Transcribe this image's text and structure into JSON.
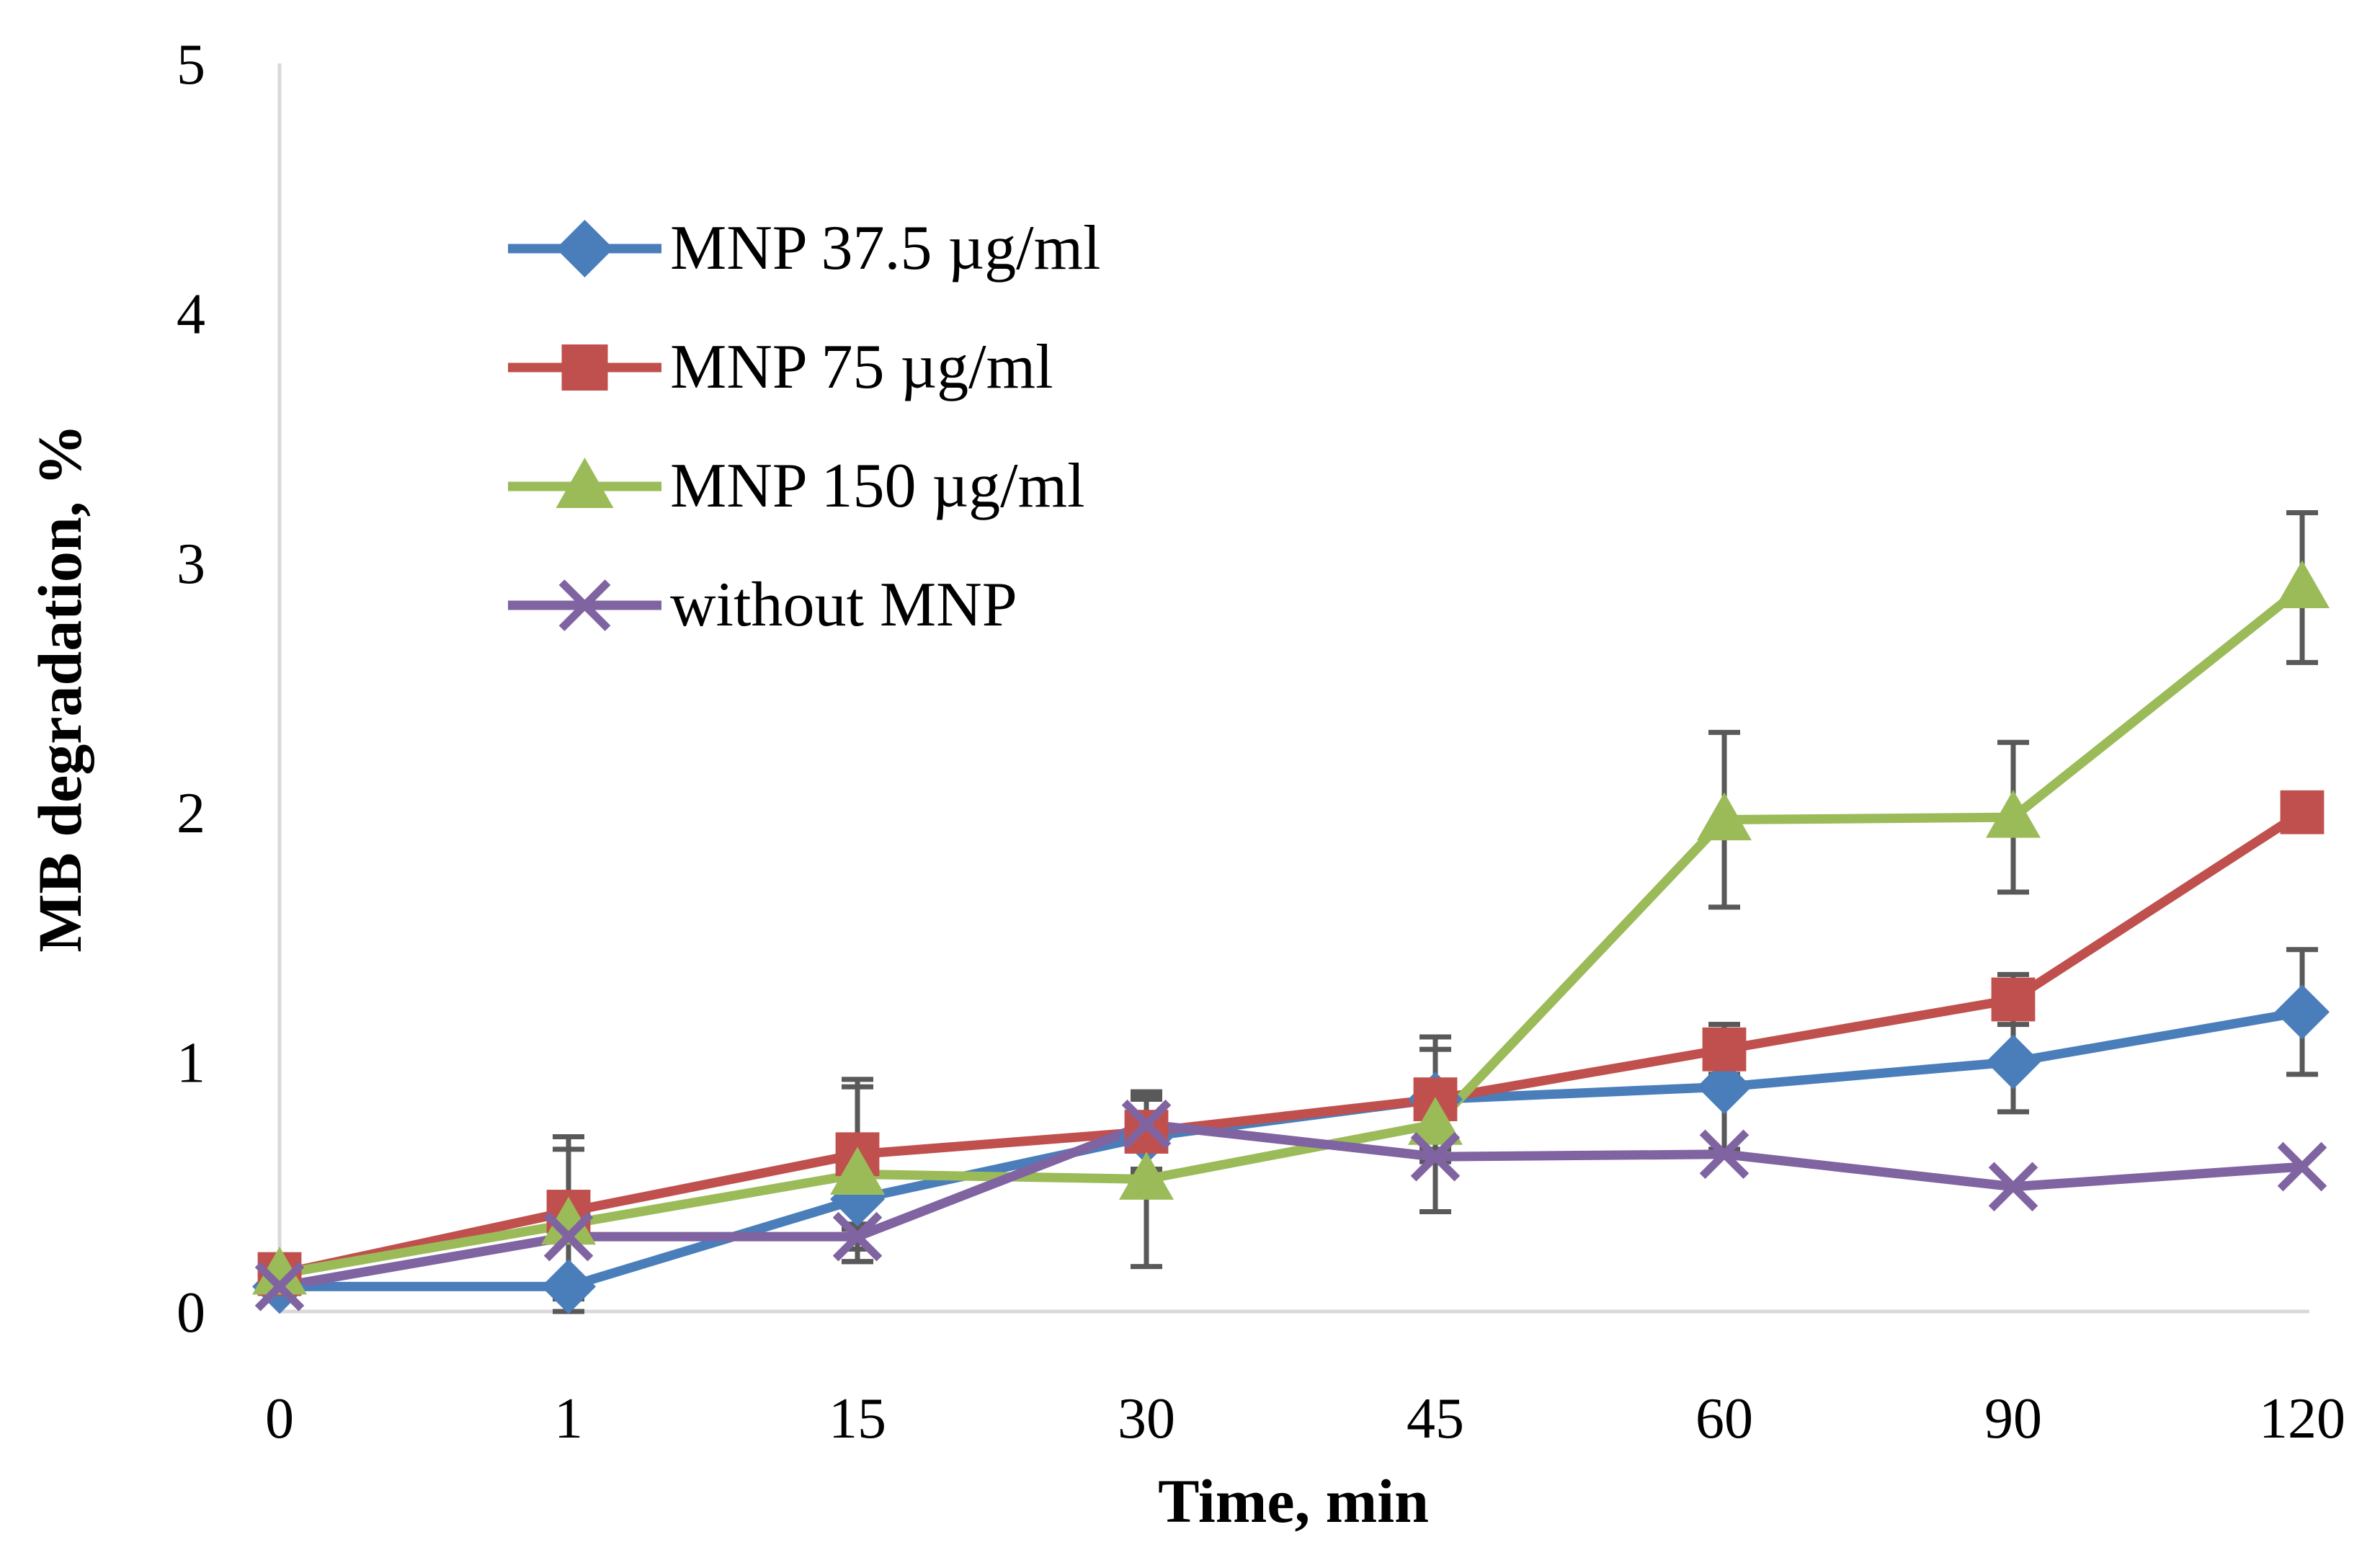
{
  "chart_data": {
    "type": "line",
    "title": "",
    "xlabel": "Time, min",
    "ylabel": "MB degradation, %",
    "categories": [
      "0",
      "1",
      "15",
      "30",
      "45",
      "60",
      "90",
      "120"
    ],
    "y_ticks": [
      "0",
      "1",
      "2",
      "3",
      "4",
      "5"
    ],
    "ylim": [
      0,
      5
    ],
    "grid": false,
    "legend_position": "top-left",
    "series": [
      {
        "name": "MNP 37.5 µg/ml",
        "color": "#4a7ebb",
        "marker": "diamond",
        "values": [
          0.1,
          0.1,
          0.45,
          0.7,
          0.85,
          0.9,
          1.0,
          1.2
        ],
        "errors": [
          0.0,
          0.6,
          0.25,
          0.15,
          0.25,
          0.25,
          0.2,
          0.25
        ]
      },
      {
        "name": "MNP 75 µg/ml",
        "color": "#c0504d",
        "marker": "square",
        "values": [
          0.15,
          0.4,
          0.63,
          0.72,
          0.85,
          1.05,
          1.25,
          2.0
        ],
        "errors": [
          0.0,
          0.3,
          0.3,
          0.15,
          0.2,
          0.1,
          0.1,
          0.0
        ]
      },
      {
        "name": "MNP 150 µg/ml",
        "color": "#9bbb59",
        "marker": "triangle",
        "values": [
          0.15,
          0.35,
          0.55,
          0.53,
          0.75,
          1.97,
          1.98,
          2.9
        ],
        "errors": [
          0.0,
          0.3,
          0.35,
          0.35,
          0.35,
          0.35,
          0.3,
          0.3
        ]
      },
      {
        "name": "without MNP",
        "color": "#8064a2",
        "marker": "x",
        "values": [
          0.1,
          0.3,
          0.3,
          0.75,
          0.62,
          0.63,
          0.5,
          0.58
        ],
        "errors": [
          0.0,
          0.0,
          0.05,
          0.0,
          0.0,
          0.0,
          0.0,
          0.0
        ]
      }
    ]
  }
}
